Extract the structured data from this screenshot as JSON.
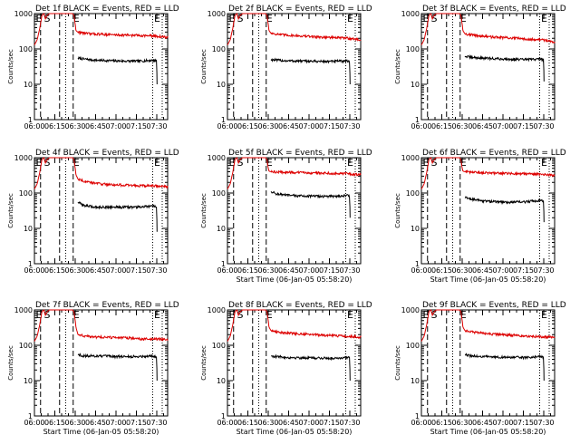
{
  "colors": {
    "events": "#000000",
    "lld": "#dd0000",
    "axes": "#000000"
  },
  "shared_axes": {
    "ylabel": "Counts/sec",
    "xlabel": "Start Time (06-Jan-05 05:58:20)",
    "ytick_labels": [
      "1",
      "10",
      "100",
      "1000"
    ],
    "xtick_labels": [
      "06:00",
      "06:15",
      "06:30",
      "06:45",
      "07:00",
      "07:15",
      "07:30"
    ],
    "marker_labels": [
      "E",
      "S",
      "E",
      "E"
    ]
  },
  "chart_data": [
    {
      "type": "line",
      "title": "Det 1f BLACK = Events, RED = LLD",
      "x_unit": "minutes after 06:00",
      "yscale": "log",
      "ylim": [
        1,
        1000
      ],
      "xlim": [
        0,
        98
      ],
      "show_xlabel": false,
      "series": [
        {
          "name": "Events",
          "color": "#000000",
          "x": [
            32,
            36,
            45,
            60,
            75,
            88,
            90,
            90.2
          ],
          "y": [
            55,
            52,
            48,
            46,
            45,
            48,
            46,
            10
          ]
        },
        {
          "name": "LLD",
          "color": "#dd0000",
          "x": [
            0,
            2,
            4,
            5.5,
            7,
            8,
            9.5,
            11,
            15,
            28,
            29,
            30,
            30.5,
            32,
            40,
            50,
            60,
            70,
            80,
            90,
            98
          ],
          "y": [
            130,
            180,
            400,
            900,
            1000,
            700,
            900,
            1000,
            1000,
            1000,
            900,
            500,
            330,
            300,
            270,
            260,
            250,
            245,
            240,
            230,
            210
          ]
        }
      ],
      "vlines": {
        "dashed": [
          4.5,
          18.5,
          28.5
        ],
        "dotted": [
          23,
          87,
          94
        ]
      }
    },
    {
      "type": "line",
      "title": "Det 2f BLACK = Events, RED = LLD",
      "x_unit": "minutes after 06:00",
      "yscale": "log",
      "ylim": [
        1,
        1000
      ],
      "xlim": [
        0,
        98
      ],
      "show_xlabel": false,
      "series": [
        {
          "name": "Events",
          "color": "#000000",
          "x": [
            32,
            36,
            45,
            60,
            75,
            88,
            90,
            90.2
          ],
          "y": [
            50,
            48,
            46,
            45,
            44,
            46,
            44,
            10
          ]
        },
        {
          "name": "LLD",
          "color": "#dd0000",
          "x": [
            0,
            2,
            4,
            5.5,
            7,
            8,
            9.5,
            11,
            15,
            28,
            29,
            30,
            30.5,
            32,
            40,
            50,
            60,
            70,
            80,
            90,
            98
          ],
          "y": [
            130,
            180,
            400,
            900,
            1000,
            700,
            900,
            1000,
            1000,
            1000,
            900,
            500,
            330,
            280,
            250,
            240,
            225,
            215,
            210,
            200,
            180
          ]
        }
      ],
      "vlines": {
        "dashed": [
          4.5,
          18.5,
          28.5
        ],
        "dotted": [
          23,
          87,
          94
        ]
      }
    },
    {
      "type": "line",
      "title": "Det 3f BLACK = Events, RED = LLD",
      "x_unit": "minutes after 06:00",
      "yscale": "log",
      "ylim": [
        1,
        1000
      ],
      "xlim": [
        0,
        98
      ],
      "show_xlabel": false,
      "series": [
        {
          "name": "Events",
          "color": "#000000",
          "x": [
            32,
            36,
            45,
            60,
            75,
            88,
            90,
            90.2
          ],
          "y": [
            62,
            58,
            55,
            52,
            50,
            52,
            50,
            12
          ]
        },
        {
          "name": "LLD",
          "color": "#dd0000",
          "x": [
            0,
            2,
            4,
            5.5,
            7,
            8,
            9.5,
            11,
            15,
            28,
            29,
            30,
            30.5,
            32,
            40,
            50,
            60,
            70,
            80,
            90,
            98
          ],
          "y": [
            130,
            180,
            400,
            900,
            1000,
            700,
            900,
            1000,
            1000,
            1000,
            900,
            500,
            330,
            270,
            240,
            220,
            210,
            200,
            190,
            180,
            160
          ]
        }
      ],
      "vlines": {
        "dashed": [
          4.5,
          18.5,
          28.5
        ],
        "dotted": [
          23,
          87,
          94
        ]
      }
    },
    {
      "type": "line",
      "title": "Det 4f BLACK = Events, RED = LLD",
      "x_unit": "minutes after 06:00",
      "yscale": "log",
      "ylim": [
        1,
        1000
      ],
      "xlim": [
        0,
        98
      ],
      "show_xlabel": false,
      "series": [
        {
          "name": "Events",
          "color": "#000000",
          "x": [
            32,
            36,
            45,
            60,
            75,
            88,
            90,
            90.2
          ],
          "y": [
            55,
            45,
            40,
            40,
            40,
            42,
            40,
            8
          ]
        },
        {
          "name": "LLD",
          "color": "#dd0000",
          "x": [
            0,
            2,
            4,
            5.5,
            7,
            8,
            9.5,
            11,
            15,
            28,
            29,
            30,
            30.5,
            32,
            40,
            50,
            60,
            70,
            80,
            90,
            98
          ],
          "y": [
            130,
            180,
            400,
            900,
            1000,
            700,
            900,
            1000,
            1000,
            1000,
            900,
            500,
            330,
            250,
            200,
            180,
            170,
            165,
            160,
            160,
            150
          ]
        }
      ],
      "vlines": {
        "dashed": [
          4.5,
          18.5,
          28.5
        ],
        "dotted": [
          23,
          87,
          94
        ]
      }
    },
    {
      "type": "line",
      "title": "Det 5f BLACK = Events, RED = LLD",
      "x_unit": "minutes after 06:00",
      "yscale": "log",
      "ylim": [
        1,
        1000
      ],
      "xlim": [
        0,
        98
      ],
      "show_xlabel": true,
      "series": [
        {
          "name": "Events",
          "color": "#000000",
          "x": [
            32,
            36,
            45,
            60,
            75,
            88,
            90,
            90.2
          ],
          "y": [
            110,
            95,
            85,
            82,
            80,
            85,
            83,
            20
          ]
        },
        {
          "name": "LLD",
          "color": "#dd0000",
          "x": [
            0,
            2,
            4,
            5.5,
            7,
            8,
            9.5,
            11,
            15,
            28,
            29,
            30,
            30.5,
            32,
            40,
            50,
            60,
            70,
            80,
            90,
            98
          ],
          "y": [
            130,
            180,
            400,
            900,
            1000,
            700,
            900,
            1000,
            1000,
            1000,
            900,
            500,
            420,
            400,
            390,
            380,
            375,
            370,
            360,
            350,
            330
          ]
        }
      ],
      "vlines": {
        "dashed": [
          4.5,
          18.5,
          28.5
        ],
        "dotted": [
          23,
          87,
          94
        ]
      }
    },
    {
      "type": "line",
      "title": "Det 6f BLACK = Events, RED = LLD",
      "x_unit": "minutes after 06:00",
      "yscale": "log",
      "ylim": [
        1,
        1000
      ],
      "xlim": [
        0,
        98
      ],
      "show_xlabel": true,
      "series": [
        {
          "name": "Events",
          "color": "#000000",
          "x": [
            32,
            36,
            45,
            60,
            75,
            88,
            90,
            90.2
          ],
          "y": [
            75,
            68,
            60,
            55,
            56,
            62,
            60,
            15
          ]
        },
        {
          "name": "LLD",
          "color": "#dd0000",
          "x": [
            0,
            2,
            4,
            5.5,
            7,
            8,
            9.5,
            11,
            15,
            28,
            29,
            30,
            30.5,
            32,
            40,
            50,
            60,
            70,
            80,
            90,
            98
          ],
          "y": [
            130,
            180,
            400,
            900,
            1000,
            700,
            900,
            1000,
            1000,
            1000,
            900,
            500,
            420,
            400,
            380,
            370,
            360,
            355,
            350,
            340,
            310
          ]
        }
      ],
      "vlines": {
        "dashed": [
          4.5,
          18.5,
          28.5
        ],
        "dotted": [
          23,
          87,
          94
        ]
      }
    },
    {
      "type": "line",
      "title": "Det 7f BLACK = Events, RED = LLD",
      "x_unit": "minutes after 06:00",
      "yscale": "log",
      "ylim": [
        1,
        1000
      ],
      "xlim": [
        0,
        98
      ],
      "show_xlabel": true,
      "series": [
        {
          "name": "Events",
          "color": "#000000",
          "x": [
            32,
            36,
            45,
            60,
            75,
            88,
            90,
            90.2
          ],
          "y": [
            55,
            50,
            50,
            48,
            48,
            50,
            48,
            10
          ]
        },
        {
          "name": "LLD",
          "color": "#dd0000",
          "x": [
            0,
            2,
            4,
            5.5,
            7,
            8,
            9.5,
            11,
            15,
            28,
            29,
            30,
            30.5,
            32,
            40,
            50,
            60,
            70,
            80,
            90,
            98
          ],
          "y": [
            130,
            180,
            400,
            900,
            1000,
            700,
            900,
            1000,
            1000,
            1000,
            900,
            500,
            330,
            200,
            175,
            170,
            165,
            160,
            150,
            150,
            145
          ]
        }
      ],
      "vlines": {
        "dashed": [
          4.5,
          18.5,
          28.5
        ],
        "dotted": [
          23,
          87,
          94
        ]
      }
    },
    {
      "type": "line",
      "title": "Det 8f BLACK = Events, RED = LLD",
      "x_unit": "minutes after 06:00",
      "yscale": "log",
      "ylim": [
        1,
        1000
      ],
      "xlim": [
        0,
        98
      ],
      "show_xlabel": true,
      "series": [
        {
          "name": "Events",
          "color": "#000000",
          "x": [
            32,
            36,
            45,
            60,
            75,
            88,
            90,
            90.2
          ],
          "y": [
            50,
            48,
            45,
            44,
            43,
            45,
            44,
            10
          ]
        },
        {
          "name": "LLD",
          "color": "#dd0000",
          "x": [
            0,
            2,
            4,
            5.5,
            7,
            8,
            9.5,
            11,
            15,
            28,
            29,
            30,
            30.5,
            32,
            40,
            50,
            60,
            70,
            80,
            90,
            98
          ],
          "y": [
            130,
            180,
            400,
            900,
            1000,
            700,
            900,
            1000,
            1000,
            1000,
            900,
            500,
            330,
            260,
            230,
            215,
            205,
            195,
            185,
            180,
            170
          ]
        }
      ],
      "vlines": {
        "dashed": [
          4.5,
          18.5,
          28.5
        ],
        "dotted": [
          23,
          87,
          94
        ]
      }
    },
    {
      "type": "line",
      "title": "Det 9f BLACK = Events, RED = LLD",
      "x_unit": "minutes after 06:00",
      "yscale": "log",
      "ylim": [
        1,
        1000
      ],
      "xlim": [
        0,
        98
      ],
      "show_xlabel": true,
      "series": [
        {
          "name": "Events",
          "color": "#000000",
          "x": [
            32,
            36,
            45,
            60,
            75,
            88,
            90,
            90.2
          ],
          "y": [
            55,
            50,
            48,
            46,
            45,
            48,
            46,
            10
          ]
        },
        {
          "name": "LLD",
          "color": "#dd0000",
          "x": [
            0,
            2,
            4,
            5.5,
            7,
            8,
            9.5,
            11,
            15,
            28,
            29,
            30,
            30.5,
            32,
            40,
            50,
            60,
            70,
            80,
            90,
            98
          ],
          "y": [
            130,
            180,
            400,
            900,
            1000,
            700,
            900,
            1000,
            1000,
            1000,
            900,
            500,
            330,
            260,
            230,
            210,
            200,
            190,
            180,
            175,
            165
          ]
        }
      ],
      "vlines": {
        "dashed": [
          4.5,
          18.5,
          28.5
        ],
        "dotted": [
          23,
          87,
          94
        ]
      }
    }
  ]
}
